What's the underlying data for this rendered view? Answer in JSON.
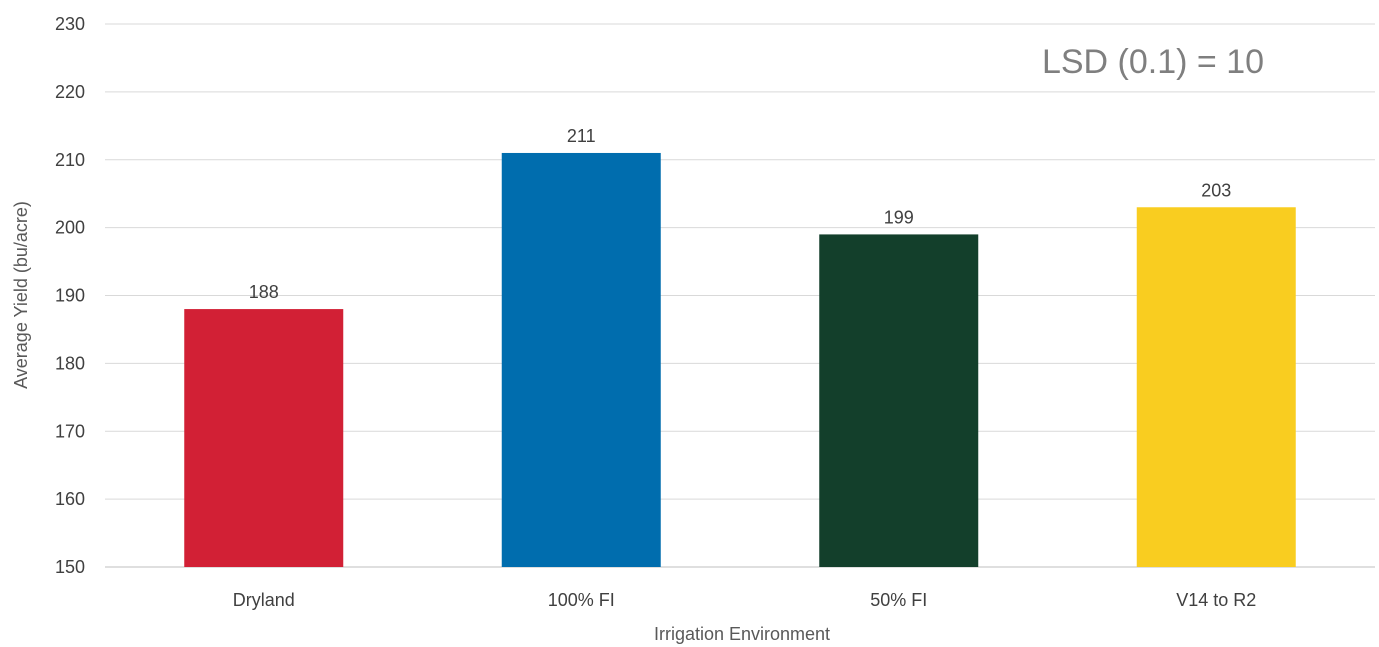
{
  "chart_data": {
    "type": "bar",
    "categories": [
      "Dryland",
      "100% FI",
      "50% FI",
      "V14 to R2"
    ],
    "values": [
      188,
      211,
      199,
      203
    ],
    "data_labels": [
      "188",
      "211",
      "199",
      "203"
    ],
    "colors": [
      "#d22035",
      "#006dae",
      "#133f2b",
      "#f9cd20"
    ],
    "title": "",
    "xlabel": "Irrigation Environment",
    "ylabel": "Average Yield (bu/acre)",
    "ylim": [
      150,
      230
    ],
    "yticks": [
      150,
      160,
      170,
      180,
      190,
      200,
      210,
      220,
      230
    ],
    "grid": true,
    "legend": "none",
    "annotation": "LSD (0.1) = 10"
  }
}
